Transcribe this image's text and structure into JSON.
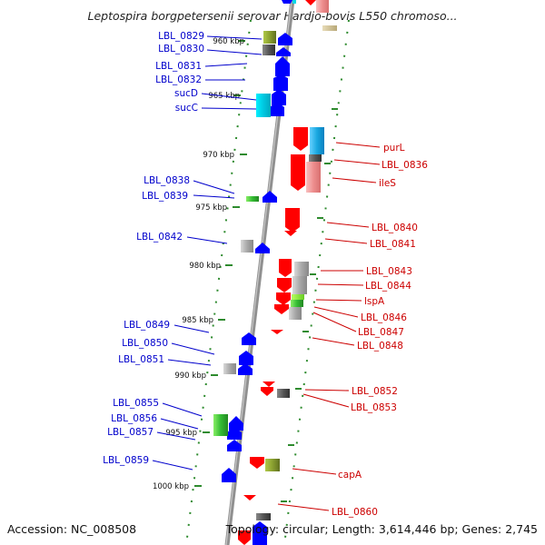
{
  "title": "Leptospira borgpetersenii serovar Hardjo-bovis L550 chromoso...",
  "footer": {
    "accession": "Accession: NC_008508",
    "summary": "Topology: circular; Length: 3,614,446 bp; Genes: 2,745"
  },
  "scale_ticks": [
    "960 kbp",
    "965 kbp",
    "970 kbp",
    "975 kbp",
    "980 kbp",
    "985 kbp",
    "990 kbp",
    "995 kbp",
    "1000 kbp"
  ],
  "left_labels": [
    "LBL_0829",
    "LBL_0830",
    "LBL_0831",
    "LBL_0832",
    "sucD",
    "sucC",
    "LBL_0838",
    "LBL_0839",
    "LBL_0842",
    "LBL_0849",
    "LBL_0850",
    "LBL_0851",
    "LBL_0855",
    "LBL_0856",
    "LBL_0857",
    "LBL_0859"
  ],
  "right_labels": [
    "purL",
    "LBL_0836",
    "ileS",
    "LBL_0840",
    "LBL_0841",
    "LBL_0843",
    "LBL_0844",
    "lspA",
    "LBL_0846",
    "LBL_0847",
    "LBL_0848",
    "LBL_0852",
    "LBL_0853",
    "capA",
    "LBL_0860"
  ],
  "colors": {
    "forward_label": "#0000cc",
    "reverse_label": "#cc0000",
    "forward_gene": "#0000ff",
    "reverse_gene": "#ff0000",
    "backbone": "#808080",
    "tick": "#2e8b2e",
    "cog_cyan": "#00d8e8",
    "cog_olive": "#8fa830",
    "cog_gray": "#a8a8a8",
    "cog_green": "#33cc33",
    "cog_pink": "#f4a0a0",
    "cog_blue": "#1aa8e0",
    "cog_tan": "#c8b888"
  }
}
